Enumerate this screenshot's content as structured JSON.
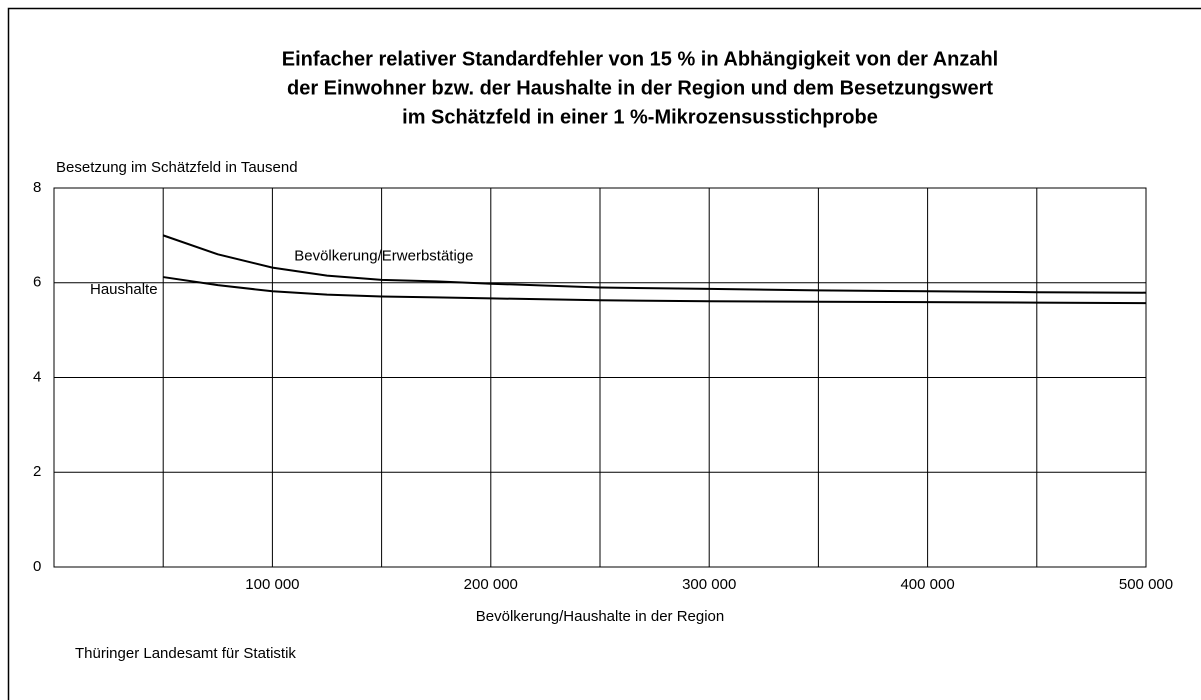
{
  "chart_data": {
    "type": "line",
    "title": [
      "Einfacher relativer Standardfehler von 15 % in Abhängigkeit von der Anzahl",
      "der Einwohner bzw. der Haushalte in der Region und dem Besetzungswert",
      "im Schätzfeld in einer 1 %-Mikrozensusstichprobe"
    ],
    "y_label": "Besetzung im Schätzfeld in Tausend",
    "x_label": "Bevölkerung/Haushalte in der Region",
    "source": "Thüringer Landesamt für Statistik",
    "x": [
      50000,
      75000,
      100000,
      125000,
      150000,
      175000,
      200000,
      250000,
      300000,
      350000,
      400000,
      450000,
      500000
    ],
    "series": [
      {
        "name": "Bevölkerung/Erwerbstätige",
        "color": "#000000",
        "values": [
          7.0,
          6.6,
          6.32,
          6.15,
          6.06,
          6.03,
          5.98,
          5.9,
          5.87,
          5.84,
          5.82,
          5.8,
          5.79
        ]
      },
      {
        "name": "Haushalte",
        "color": "#000000",
        "values": [
          6.12,
          5.95,
          5.82,
          5.75,
          5.71,
          5.69,
          5.67,
          5.63,
          5.61,
          5.6,
          5.59,
          5.58,
          5.57
        ]
      }
    ],
    "xlim": [
      0,
      500000
    ],
    "xticks": [
      {
        "value": 100000,
        "label": "100 000"
      },
      {
        "value": 200000,
        "label": "200 000"
      },
      {
        "value": 300000,
        "label": "300 000"
      },
      {
        "value": 400000,
        "label": "400 000"
      },
      {
        "value": 500000,
        "label": "500 000"
      }
    ],
    "x_minor_grid": [
      50000,
      150000,
      250000,
      350000,
      450000
    ],
    "ylim": [
      0,
      8
    ],
    "yticks": [
      0,
      2,
      4,
      6,
      8
    ],
    "grid": true
  }
}
